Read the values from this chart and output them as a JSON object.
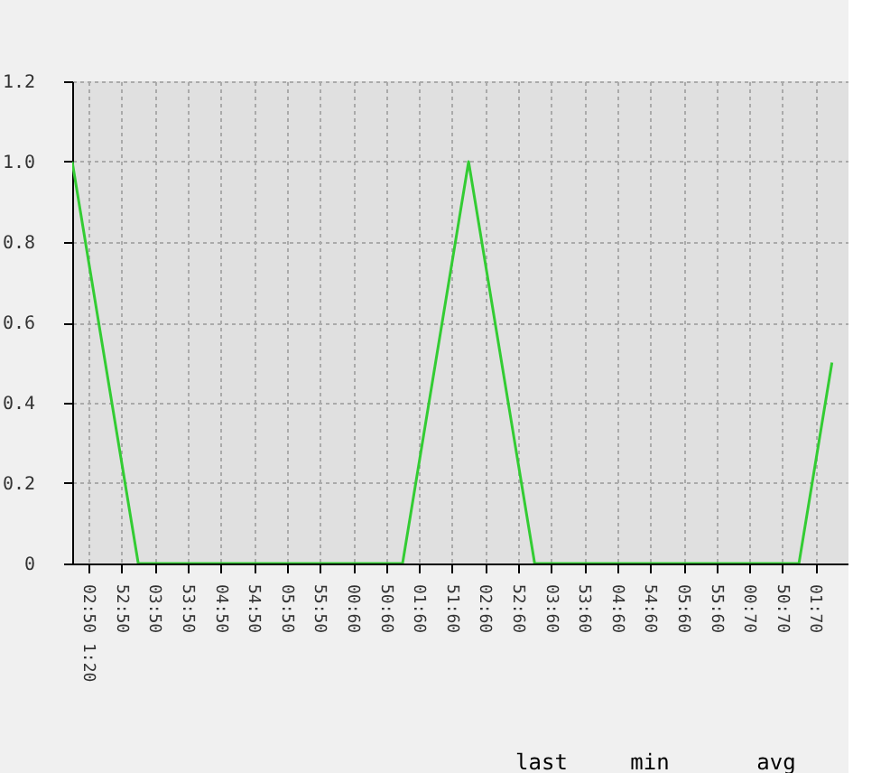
{
  "chart_data": {
    "type": "line",
    "categories": [
      null,
      "02:50 1:20",
      null,
      "52:50",
      null,
      "03:50",
      null,
      "53:50",
      null,
      "04:50",
      null,
      "54:50",
      null,
      "05:50",
      null,
      "55:50",
      null,
      "00:60",
      null,
      "50:60",
      null,
      "01:60",
      null,
      "51:60",
      null,
      "02:60",
      null,
      "52:60",
      null,
      "03:60",
      null,
      "53:60",
      null,
      "04:60",
      null,
      "54:60",
      null,
      "05:60",
      null,
      "55:60",
      null,
      "00:70",
      null,
      "50:70",
      null,
      "01:70",
      null
    ],
    "series": [
      {
        "color": "#33cc33",
        "values": [
          1.0,
          0.75,
          0.5,
          0.25,
          0,
          0,
          0,
          0,
          0,
          0,
          0,
          0,
          0,
          0,
          0,
          0,
          0,
          0,
          0,
          0,
          0,
          0.25,
          0.5,
          0.75,
          1.0,
          0.75,
          0.5,
          0.25,
          0,
          0,
          0,
          0,
          0,
          0,
          0,
          0,
          0,
          0,
          0,
          0,
          0,
          0,
          0,
          0,
          0,
          0.25,
          0.5
        ]
      }
    ],
    "ylim": [
      0,
      1.2
    ],
    "yticks": [
      {
        "value": 0,
        "label": "0"
      },
      0.2,
      0.4,
      0.6,
      0.8,
      {
        "value": 1,
        "label": "1.0"
      },
      1.2
    ],
    "grid": true,
    "annotations": [
      "last",
      "min",
      "avg"
    ]
  }
}
